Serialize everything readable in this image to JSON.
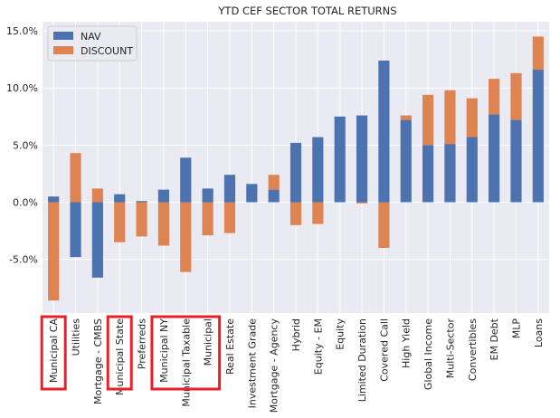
{
  "chart_data": {
    "type": "bar",
    "stacked": true,
    "title": "YTD CEF SECTOR TOTAL RETURNS",
    "xlabel": "",
    "ylabel": "",
    "ylim": [
      -9.7,
      15.8
    ],
    "y_ticks": [
      -5.0,
      0.0,
      5.0,
      10.0,
      15.0
    ],
    "y_tick_labels": [
      "-5.0%",
      "0.0%",
      "5.0%",
      "10.0%",
      "15.0%"
    ],
    "grid": true,
    "legend_position": "top-left",
    "categories": [
      "Municipal CA",
      "Utilities",
      "Mortgage - CMBS",
      "Municipal State",
      "Preferreds",
      "Municipal NY",
      "Municipal Taxable",
      "Municipal",
      "Real Estate",
      "Investment Grade",
      "Mortgage - Agency",
      "Hybrid",
      "Equity - EM",
      "Equity",
      "Limited Duration",
      "Covered Call",
      "High Yield",
      "Global Income",
      "Multi-Sector",
      "Convertibles",
      "EM Debt",
      "MLP",
      "Loans"
    ],
    "series": [
      {
        "name": "NAV",
        "color": "#4c72b0",
        "values": [
          0.5,
          -4.8,
          -6.6,
          0.7,
          0.1,
          1.1,
          3.9,
          1.2,
          2.4,
          1.6,
          1.1,
          5.2,
          5.7,
          7.5,
          7.6,
          12.4,
          7.2,
          5.0,
          5.1,
          5.7,
          7.7,
          7.2,
          11.6
        ]
      },
      {
        "name": "DISCOUNT",
        "color": "#dd8452",
        "values": [
          -8.6,
          4.3,
          1.2,
          -3.5,
          -3.0,
          -3.8,
          -6.1,
          -2.9,
          -2.7,
          0.0,
          1.3,
          -2.0,
          -1.9,
          0.0,
          -0.1,
          -4.0,
          0.4,
          4.4,
          4.7,
          3.4,
          3.1,
          4.1,
          2.9
        ]
      }
    ],
    "highlight_boxes": [
      {
        "categories": [
          "Municipal CA"
        ],
        "color": "#e8202a"
      },
      {
        "categories": [
          "Municipal State"
        ],
        "color": "#e8202a"
      },
      {
        "categories": [
          "Municipal NY",
          "Municipal Taxable",
          "Municipal"
        ],
        "color": "#e8202a"
      }
    ],
    "style": {
      "plot_background": "#eaeaf2",
      "grid_color": "#ffffff"
    }
  }
}
